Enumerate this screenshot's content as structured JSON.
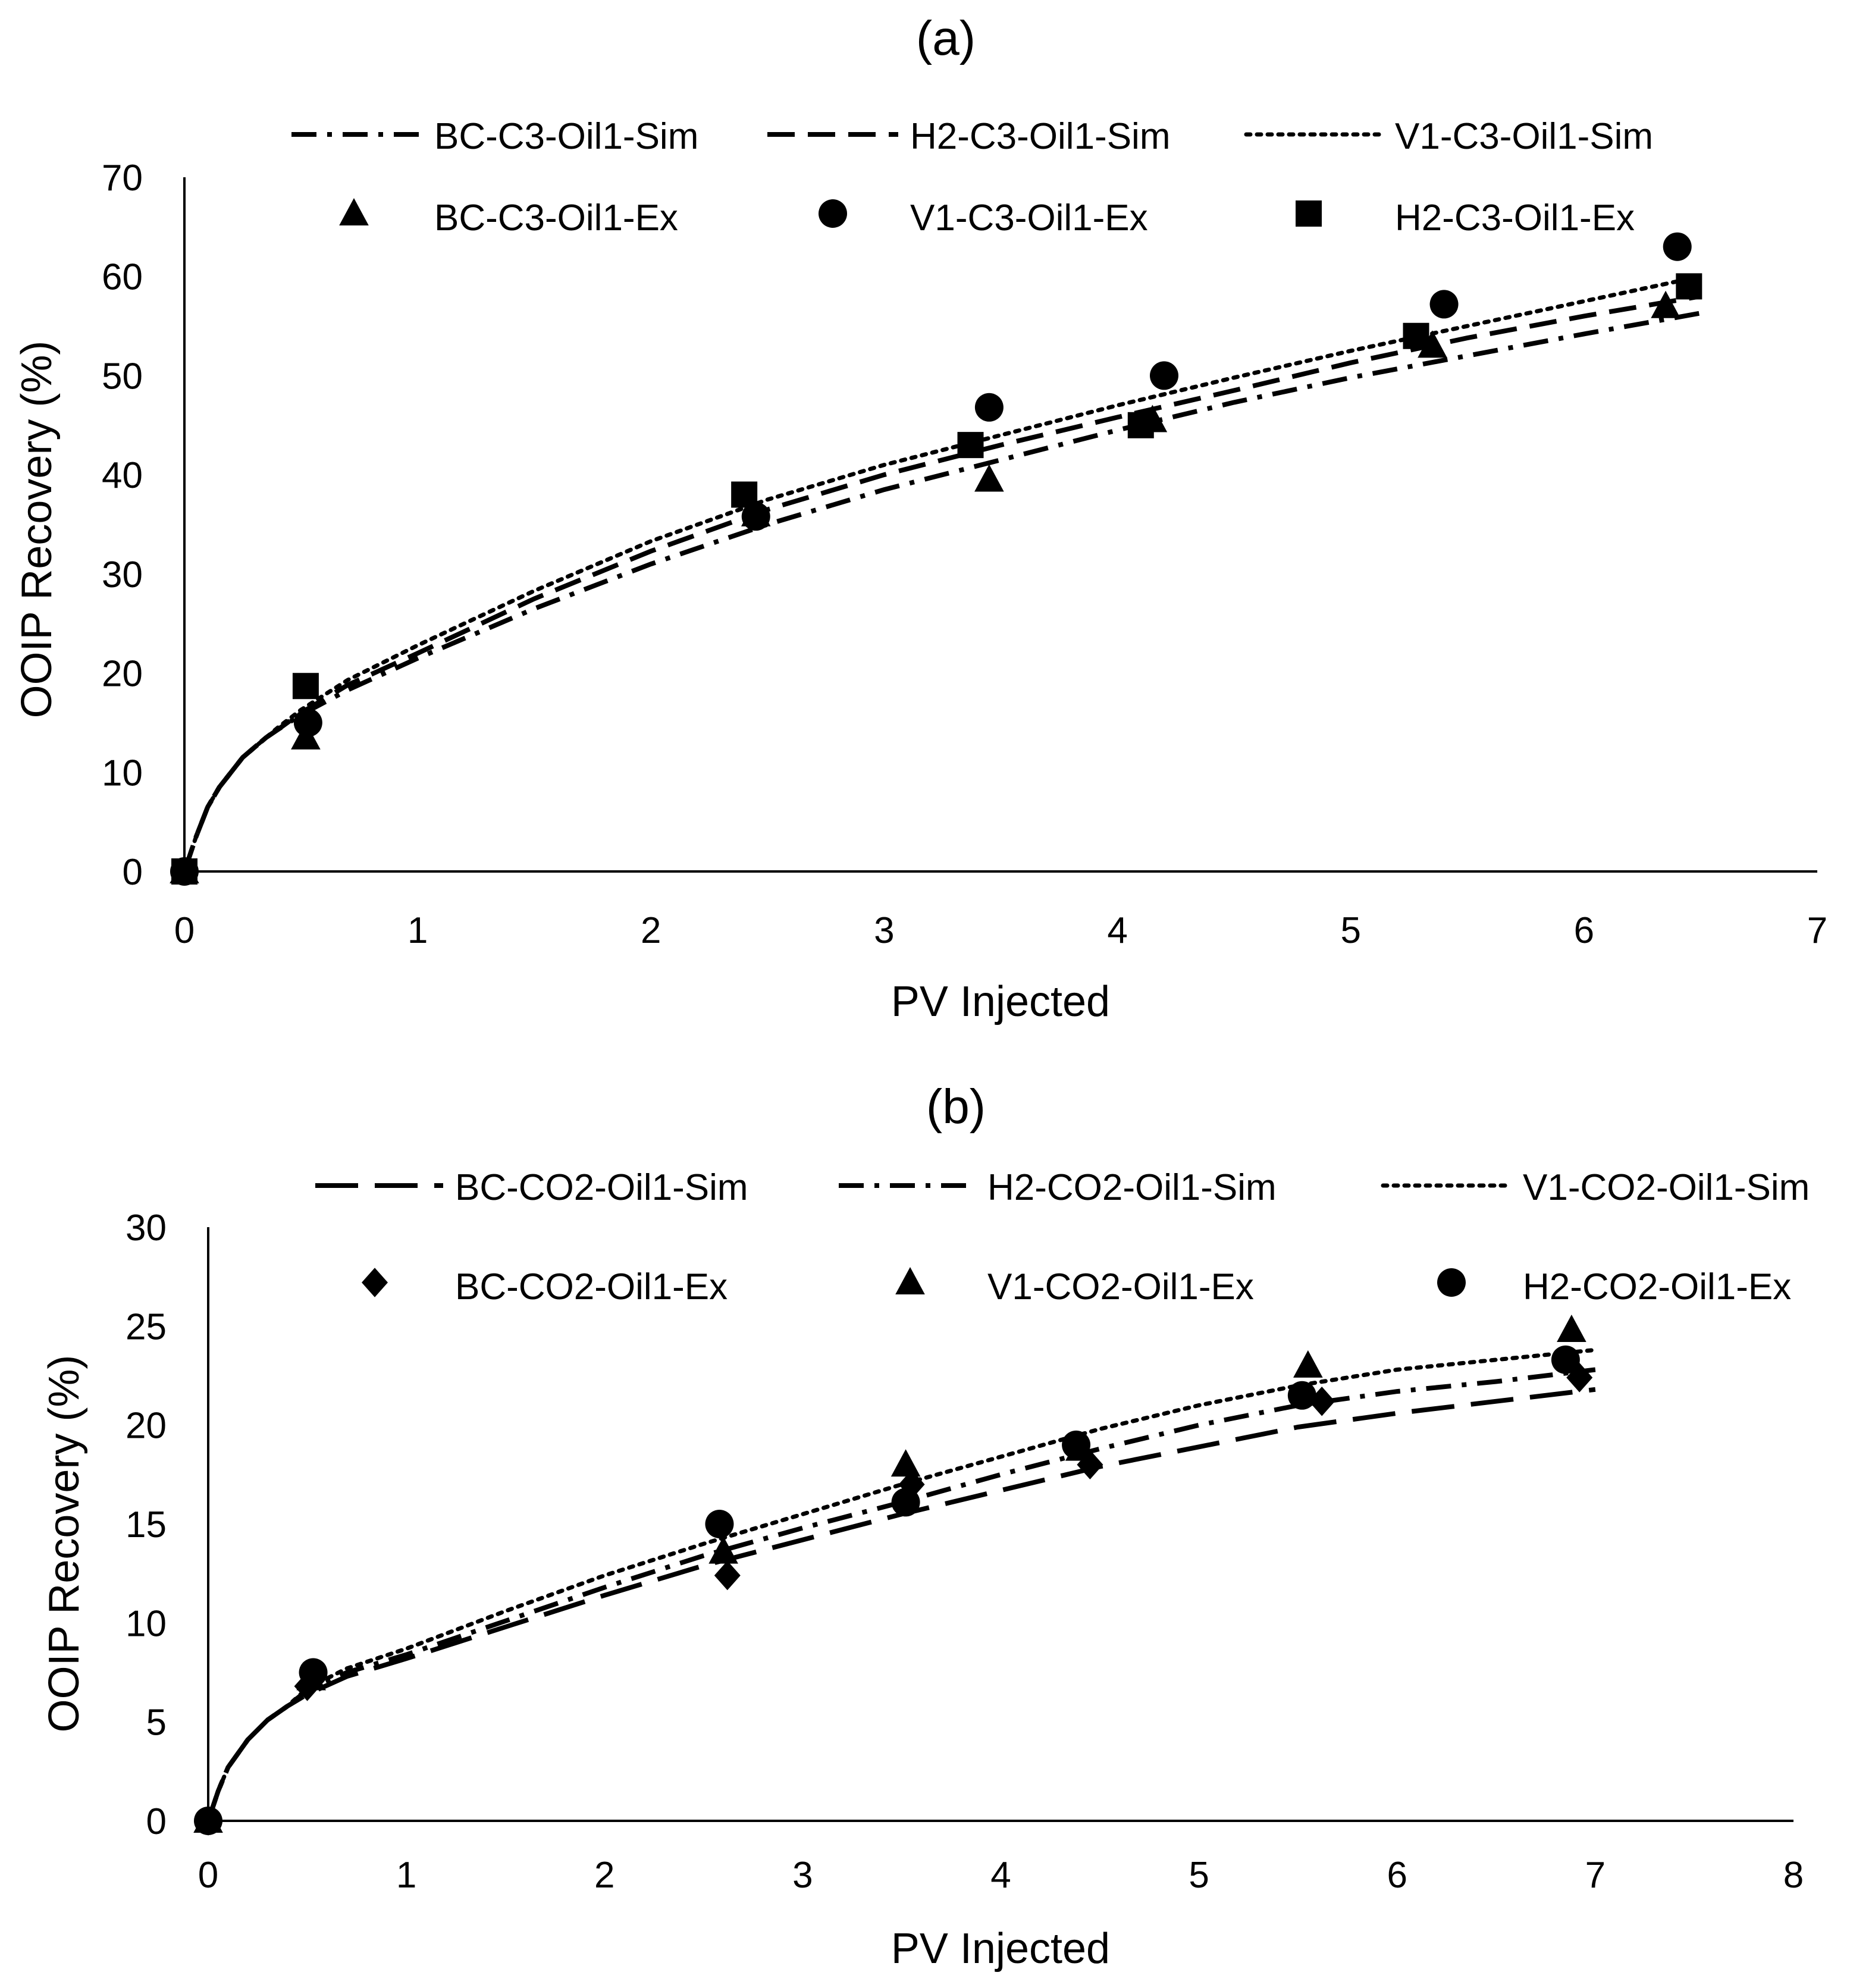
{
  "chart_data": [
    {
      "panel_label": "(a)",
      "type": "line",
      "xlabel": "PV Injected",
      "ylabel": "OOIP Recovery (%)",
      "xlim": [
        0,
        7
      ],
      "ylim": [
        0,
        70
      ],
      "x_ticks": [
        "0",
        "1",
        "2",
        "3",
        "4",
        "5",
        "6",
        "7"
      ],
      "y_ticks": [
        "0",
        "10",
        "20",
        "30",
        "40",
        "50",
        "60",
        "70"
      ],
      "grid": false,
      "legend_position": "top",
      "series": [
        {
          "name": "BC-C3-Oil1-Sim",
          "kind": "line",
          "style": "dashdot",
          "x": [
            0,
            0.05,
            0.1,
            0.15,
            0.2,
            0.25,
            0.3,
            0.35,
            0.4,
            0.5,
            0.7,
            1,
            1.5,
            2,
            2.5,
            3,
            3.5,
            4,
            4.5,
            5,
            5.5,
            6,
            6.5
          ],
          "y": [
            0,
            3.5,
            6.5,
            8.5,
            10,
            11.5,
            12.5,
            13.5,
            14.3,
            15.8,
            18.3,
            21.5,
            26.5,
            31,
            35,
            38.5,
            41.5,
            44.5,
            47.3,
            49.8,
            52,
            54.2,
            56.3
          ]
        },
        {
          "name": "H2-C3-Oil1-Sim",
          "kind": "line",
          "style": "dashed",
          "x": [
            0,
            0.05,
            0.1,
            0.15,
            0.2,
            0.25,
            0.3,
            0.35,
            0.4,
            0.5,
            0.7,
            1,
            1.5,
            2,
            2.5,
            3,
            3.5,
            4,
            4.5,
            5,
            5.5,
            6,
            6.5
          ],
          "y": [
            0,
            3.5,
            6.5,
            8.5,
            10,
            11.5,
            12.5,
            13.5,
            14.3,
            16,
            18.8,
            22,
            27.5,
            32.3,
            36.5,
            40,
            43,
            45.8,
            48.5,
            51.3,
            53.8,
            56,
            58
          ]
        },
        {
          "name": "V1-C3-Oil1-Sim",
          "kind": "line",
          "style": "dotted",
          "x": [
            0,
            0.05,
            0.1,
            0.15,
            0.2,
            0.25,
            0.3,
            0.35,
            0.4,
            0.5,
            0.7,
            1,
            1.5,
            2,
            2.5,
            3,
            3.5,
            4,
            4.5,
            5,
            5.5,
            6,
            6.5
          ],
          "y": [
            0,
            3.5,
            6.5,
            8.5,
            10,
            11.5,
            12.5,
            13.5,
            14.5,
            16.3,
            19.3,
            22.8,
            28.3,
            33.3,
            37.5,
            41,
            44,
            47,
            49.8,
            52.5,
            55,
            57.5,
            60
          ]
        },
        {
          "name": "BC-C3-Oil1-Ex",
          "kind": "marker",
          "marker": "triangle",
          "x": [
            0,
            0.52,
            2.45,
            3.45,
            4.15,
            5.35,
            6.35
          ],
          "y": [
            0,
            13.5,
            36,
            39.5,
            45.5,
            53,
            57
          ]
        },
        {
          "name": "V1-C3-Oil1-Ex",
          "kind": "marker",
          "marker": "circle",
          "x": [
            0,
            0.53,
            2.45,
            3.45,
            4.2,
            5.4,
            6.4
          ],
          "y": [
            0,
            15,
            35.8,
            46.8,
            50,
            57.2,
            63
          ]
        },
        {
          "name": "H2-C3-Oil1-Ex",
          "kind": "marker",
          "marker": "square",
          "x": [
            0,
            0.52,
            2.4,
            3.37,
            4.1,
            5.28,
            6.45
          ],
          "y": [
            0,
            18.7,
            38,
            43,
            45,
            54,
            59
          ]
        }
      ]
    },
    {
      "panel_label": "(b)",
      "type": "line",
      "xlabel": "PV Injected",
      "ylabel": "OOIP Recovery (%)",
      "xlim": [
        0,
        8
      ],
      "ylim": [
        0,
        30
      ],
      "x_ticks": [
        "0",
        "1",
        "2",
        "3",
        "4",
        "5",
        "6",
        "7",
        "8"
      ],
      "y_ticks": [
        "0",
        "5",
        "10",
        "15",
        "20",
        "25",
        "30"
      ],
      "grid": false,
      "legend_position": "top",
      "series": [
        {
          "name": "BC-CO2-Oil1-Sim",
          "kind": "line",
          "style": "longdash",
          "x": [
            0,
            0.05,
            0.1,
            0.2,
            0.3,
            0.4,
            0.5,
            0.7,
            1,
            1.5,
            2,
            2.5,
            3,
            3.5,
            4,
            4.5,
            5,
            5.5,
            6,
            6.5,
            7
          ],
          "y": [
            0,
            1.5,
            2.7,
            4.1,
            5.1,
            5.8,
            6.4,
            7.3,
            8.2,
            9.8,
            11.4,
            12.9,
            14.2,
            15.5,
            16.7,
            17.9,
            18.9,
            19.9,
            20.6,
            21.2,
            21.8
          ]
        },
        {
          "name": "H2-CO2-Oil1-Sim",
          "kind": "line",
          "style": "dashdot",
          "x": [
            0,
            0.05,
            0.1,
            0.2,
            0.3,
            0.4,
            0.5,
            0.7,
            1,
            1.5,
            2,
            2.5,
            3,
            3.5,
            4,
            4.5,
            5,
            5.5,
            6,
            6.5,
            7
          ],
          "y": [
            0,
            1.5,
            2.7,
            4.1,
            5.1,
            5.8,
            6.6,
            7.5,
            8.4,
            10.1,
            11.8,
            13.4,
            14.8,
            16.1,
            17.5,
            18.8,
            20,
            21,
            21.7,
            22.2,
            22.8
          ]
        },
        {
          "name": "V1-CO2-Oil1-Sim",
          "kind": "line",
          "style": "dotted",
          "x": [
            0,
            0.05,
            0.1,
            0.2,
            0.3,
            0.4,
            0.5,
            0.7,
            1,
            1.5,
            2,
            2.5,
            3,
            3.5,
            4,
            4.5,
            5,
            5.5,
            6,
            6.5,
            7
          ],
          "y": [
            0,
            1.5,
            2.7,
            4.1,
            5.1,
            5.8,
            6.7,
            7.7,
            8.7,
            10.6,
            12.4,
            14,
            15.5,
            17,
            18.4,
            19.8,
            21,
            22,
            22.8,
            23.3,
            23.8
          ]
        },
        {
          "name": "BC-CO2-Oil1-Ex",
          "kind": "marker",
          "marker": "diamond",
          "x": [
            0,
            0.5,
            2.62,
            3.55,
            4.45,
            5.62,
            6.92
          ],
          "y": [
            0,
            6.8,
            12.4,
            17,
            18,
            21.2,
            22.4
          ]
        },
        {
          "name": "V1-CO2-Oil1-Ex",
          "kind": "marker",
          "marker": "triangle",
          "x": [
            0,
            0.52,
            2.6,
            3.52,
            4.4,
            5.55,
            6.88
          ],
          "y": [
            0,
            7.2,
            13.6,
            18,
            18.8,
            23,
            24.8
          ]
        },
        {
          "name": "H2-CO2-Oil1-Ex",
          "kind": "marker",
          "marker": "circle",
          "x": [
            0,
            0.53,
            2.58,
            3.52,
            4.38,
            5.52,
            6.85
          ],
          "y": [
            0,
            7.5,
            15,
            16.1,
            19,
            21.5,
            23.3
          ]
        }
      ]
    }
  ]
}
